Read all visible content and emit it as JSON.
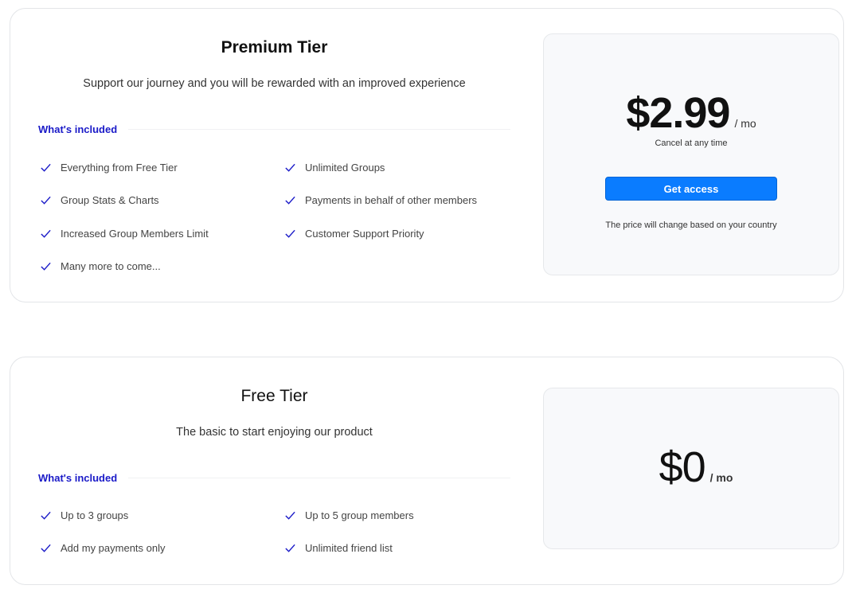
{
  "premium": {
    "title": "Premium Tier",
    "subtitle": "Support our journey and you will be rewarded with an improved experience",
    "included_label": "What's included",
    "features": [
      "Everything from Free Tier",
      "Unlimited Groups",
      "Group Stats & Charts",
      "Payments in behalf of other members",
      "Increased Group Members Limit",
      "Customer Support Priority",
      "Many more to come..."
    ],
    "price": "$2.99",
    "period": "/ mo",
    "cancel_note": "Cancel at any time",
    "cta": "Get access",
    "country_note": "The price will change based on your country"
  },
  "free": {
    "title": "Free Tier",
    "subtitle": "The basic to start enjoying our product",
    "included_label": "What's included",
    "features": [
      "Up to 3 groups",
      "Up to 5 group members",
      "Add my payments only",
      "Unlimited friend list"
    ],
    "price": "$0",
    "period": "/ mo"
  },
  "colors": {
    "accent": "#0a7cff",
    "label": "#1a1ac8",
    "check": "#1a1ac8"
  }
}
